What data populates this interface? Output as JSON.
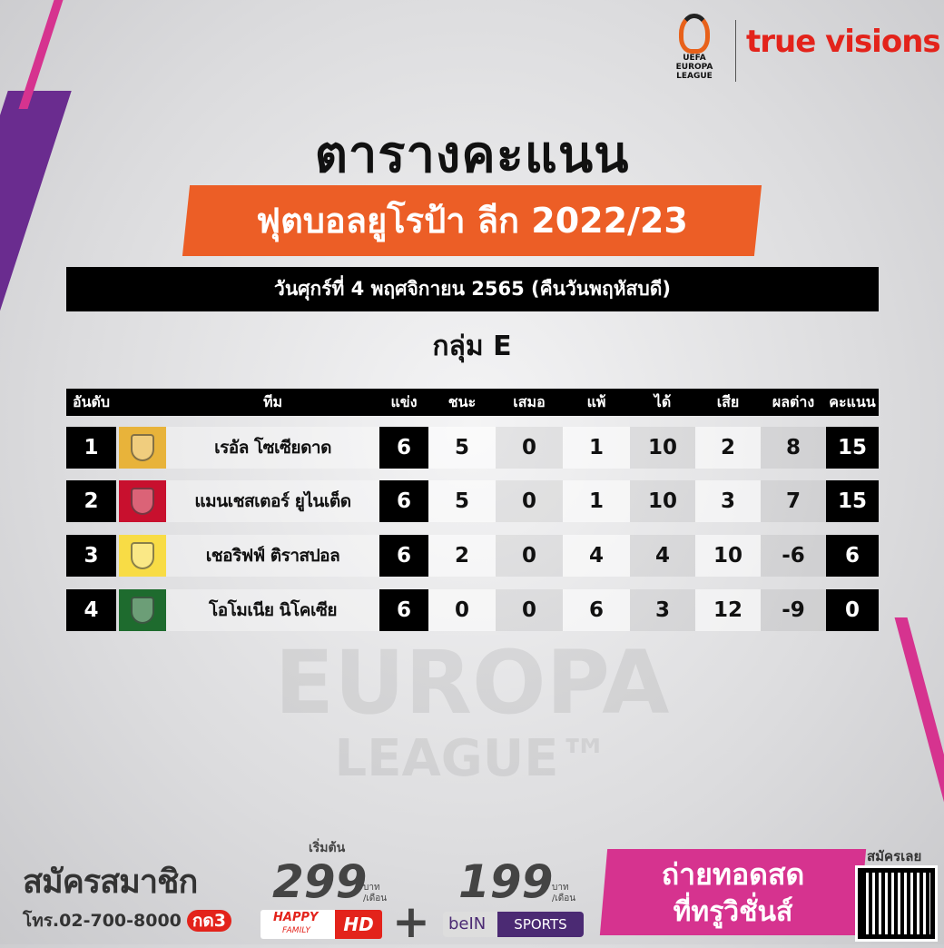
{
  "brand": {
    "league_logo_text": "UEFA EUROPA LEAGUE",
    "broadcaster": "true visions"
  },
  "title": "ตารางคะแนน",
  "subtitle": "ฟุตบอลยูโรป้า ลีก 2022/23",
  "date": "วันศุกร์ที่ 4 พฤศจิกายน 2565 (คืนวันพฤหัสบดี)",
  "group": "กลุ่ม E",
  "columns": [
    "อันดับ",
    "ทีม",
    "แข่ง",
    "ชนะ",
    "เสมอ",
    "แพ้",
    "ได้",
    "เสีย",
    "ผลต่าง",
    "คะแนน"
  ],
  "rows": [
    {
      "rank": "1",
      "team": "เรอัล โซเซียดาด",
      "played": "6",
      "won": "5",
      "drawn": "0",
      "lost": "1",
      "gf": "10",
      "ga": "2",
      "gd": "8",
      "pts": "15",
      "crest_color": "#e8b33a"
    },
    {
      "rank": "2",
      "team": "แมนเชสเตอร์ ยูไนเต็ด",
      "played": "6",
      "won": "5",
      "drawn": "0",
      "lost": "1",
      "gf": "10",
      "ga": "3",
      "gd": "7",
      "pts": "15",
      "crest_color": "#c8102e"
    },
    {
      "rank": "3",
      "team": "เชอริฟฟ์ ติราสปอล",
      "played": "6",
      "won": "2",
      "drawn": "0",
      "lost": "4",
      "gf": "4",
      "ga": "10",
      "gd": "-6",
      "pts": "6",
      "crest_color": "#f8dc45"
    },
    {
      "rank": "4",
      "team": "โอโมเนีย นิโคเซีย",
      "played": "6",
      "won": "0",
      "drawn": "0",
      "lost": "6",
      "gf": "3",
      "ga": "12",
      "gd": "-9",
      "pts": "0",
      "crest_color": "#1e6b2e"
    }
  ],
  "watermark": {
    "line1": "EUROPA",
    "line2": "LEAGUE™"
  },
  "footer": {
    "signup": "สมัครสมาชิก",
    "phone": "โทร.02-700-8000",
    "press": "กด3",
    "starting": "เริ่มต้น",
    "price1": "299",
    "price2": "199",
    "unit1": "บาท",
    "unit2": "/เดือน",
    "pkg1a": "HAPPY",
    "pkg1b": "FAMILY",
    "pkg1c": "HD",
    "pkg2a": "beIN",
    "pkg2b": "SPORTS",
    "plus": "+",
    "live1": "ถ่ายทอดสด",
    "live2": "ที่ทรูวิชั่นส์",
    "qr_label": "สมัครเลย"
  },
  "colors": {
    "orange": "#ec5e26",
    "pink": "#d6338f",
    "purple": "#6a2c8f",
    "truevisions_red": "#e3231b"
  }
}
